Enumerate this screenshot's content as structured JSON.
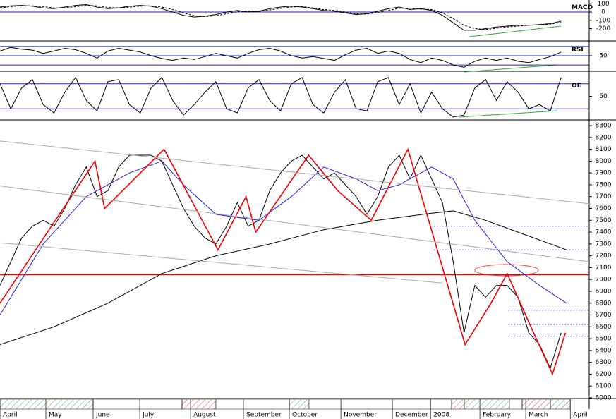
{
  "chart_data": [
    {
      "type": "line",
      "title": "MACD",
      "x": [
        0,
        1,
        2,
        3,
        4,
        5,
        6,
        7,
        8,
        9,
        10,
        11,
        12,
        13,
        14,
        15,
        16,
        17,
        18,
        19,
        20,
        21,
        22,
        23,
        24,
        25,
        26,
        27,
        28,
        29,
        30,
        31,
        32,
        33,
        34,
        35,
        36,
        37,
        38,
        39,
        40,
        41,
        42,
        43,
        44,
        45,
        46,
        47,
        48,
        49,
        50,
        51,
        52
      ],
      "series": [
        {
          "color": "#000000",
          "dashed": false,
          "values": [
            60,
            75,
            80,
            70,
            50,
            40,
            60,
            80,
            90,
            60,
            40,
            50,
            70,
            80,
            70,
            40,
            0,
            -40,
            -60,
            -50,
            -30,
            0,
            20,
            0,
            10,
            40,
            60,
            70,
            60,
            40,
            20,
            10,
            -10,
            -30,
            -20,
            10,
            40,
            60,
            30,
            40,
            20,
            -40,
            -130,
            -220,
            -220,
            -200,
            -180,
            -170,
            -160,
            -160,
            -150,
            -140,
            -110
          ]
        },
        {
          "color": "#000000",
          "dashed": true,
          "values": [
            50,
            65,
            75,
            75,
            65,
            50,
            50,
            65,
            80,
            75,
            55,
            50,
            60,
            70,
            75,
            60,
            30,
            -10,
            -45,
            -55,
            -45,
            -20,
            5,
            10,
            5,
            25,
            45,
            60,
            65,
            50,
            30,
            20,
            0,
            -20,
            -25,
            -5,
            20,
            45,
            45,
            35,
            30,
            -10,
            -80,
            -160,
            -200,
            -210,
            -195,
            -180,
            -170,
            -160,
            -155,
            -145,
            -125
          ]
        }
      ],
      "xlim": [
        0,
        54.6
      ],
      "ylim": [
        -340,
        145
      ],
      "yticks": [
        100,
        0,
        -100,
        -200
      ],
      "hlines": [
        0
      ]
    },
    {
      "type": "line",
      "title": "RSI",
      "x": [
        0,
        1,
        2,
        3,
        4,
        5,
        6,
        7,
        8,
        9,
        10,
        11,
        12,
        13,
        14,
        15,
        16,
        17,
        18,
        19,
        20,
        21,
        22,
        23,
        24,
        25,
        26,
        27,
        28,
        29,
        30,
        31,
        32,
        33,
        34,
        35,
        36,
        37,
        38,
        39,
        40,
        41,
        42,
        43,
        44,
        45,
        46,
        47,
        48,
        49,
        50,
        51,
        52
      ],
      "series": [
        {
          "color": "#000000",
          "dashed": false,
          "values": [
            60,
            68,
            64,
            62,
            55,
            60,
            66,
            63,
            55,
            45,
            60,
            66,
            62,
            58,
            50,
            44,
            40,
            45,
            42,
            48,
            55,
            50,
            45,
            55,
            63,
            66,
            60,
            50,
            45,
            48,
            44,
            40,
            52,
            62,
            66,
            55,
            60,
            55,
            42,
            35,
            45,
            40,
            30,
            25,
            38,
            45,
            40,
            45,
            38,
            35,
            42,
            48,
            58
          ]
        }
      ],
      "xlim": [
        0,
        54.6
      ],
      "ylim": [
        18,
        82
      ],
      "yticks": [
        50
      ],
      "hlines": [
        30,
        50,
        70
      ]
    },
    {
      "type": "line",
      "title": "OE",
      "x": [
        0,
        1,
        2,
        3,
        4,
        5,
        6,
        7,
        8,
        9,
        10,
        11,
        12,
        13,
        14,
        15,
        16,
        17,
        18,
        19,
        20,
        21,
        22,
        23,
        24,
        25,
        26,
        27,
        28,
        29,
        30,
        31,
        32,
        33,
        34,
        35,
        36,
        37,
        38,
        39,
        40,
        41,
        42,
        43,
        44,
        45,
        46,
        47,
        48,
        49,
        50,
        51,
        52
      ],
      "series": [
        {
          "color": "#000000",
          "dashed": false,
          "values": [
            80,
            20,
            70,
            90,
            30,
            10,
            60,
            95,
            40,
            15,
            85,
            90,
            30,
            10,
            70,
            95,
            40,
            5,
            30,
            60,
            85,
            20,
            10,
            70,
            90,
            40,
            15,
            80,
            95,
            30,
            10,
            60,
            90,
            20,
            15,
            85,
            95,
            30,
            80,
            10,
            60,
            20,
            0,
            5,
            70,
            90,
            40,
            85,
            60,
            20,
            30,
            15,
            95
          ]
        }
      ],
      "xlim": [
        0,
        54.6
      ],
      "ylim": [
        -5,
        110
      ],
      "yticks": [
        50
      ],
      "hlines": [
        20,
        80
      ]
    },
    {
      "type": "line",
      "x": [
        0,
        1,
        2,
        3,
        4,
        5,
        6,
        7,
        8,
        9,
        10,
        11,
        12,
        13,
        14,
        15,
        16,
        17,
        18,
        19,
        20,
        21,
        22,
        23,
        24,
        25,
        26,
        27,
        28,
        29,
        30,
        31,
        32,
        33,
        34,
        35,
        36,
        37,
        38,
        39,
        40,
        41,
        42,
        43,
        44,
        45,
        46,
        47,
        48,
        49,
        50,
        51,
        52
      ],
      "series": [
        {
          "color": "#000000",
          "dashed": false,
          "values": [
            6950,
            7150,
            7350,
            7450,
            7500,
            7450,
            7600,
            7800,
            7950,
            7700,
            7750,
            7950,
            8050,
            8050,
            8050,
            8000,
            7800,
            7600,
            7450,
            7350,
            7300,
            7450,
            7650,
            7450,
            7500,
            7750,
            7900,
            8000,
            8050,
            7950,
            7850,
            7900,
            7800,
            7700,
            7550,
            7700,
            7950,
            8050,
            7850,
            8050,
            7850,
            7650,
            7150,
            6550,
            6950,
            6850,
            6950,
            6950,
            6850,
            6550,
            6450,
            6250,
            6550
          ]
        },
        {
          "color": "#2222dd",
          "dashed": false,
          "x": [
            0,
            4,
            8,
            12,
            15,
            17,
            20,
            24,
            27,
            30,
            33,
            35,
            37,
            40,
            42,
            44,
            47,
            50,
            52.5
          ],
          "values": [
            6700,
            7300,
            7700,
            7900,
            8000,
            7800,
            7550,
            7500,
            7700,
            7950,
            7850,
            7750,
            7800,
            7950,
            7850,
            7500,
            7150,
            6950,
            6800
          ]
        },
        {
          "color": "#000000",
          "dashed": false,
          "x": [
            0,
            5,
            10,
            15,
            20,
            25,
            30,
            35,
            40,
            42,
            45,
            48,
            52.5
          ],
          "values": [
            6450,
            6600,
            6800,
            7050,
            7200,
            7300,
            7420,
            7500,
            7560,
            7580,
            7500,
            7400,
            7250
          ]
        },
        {
          "color": "#ee0000",
          "dashed": false,
          "x": [
            0,
            8.8,
            9.7,
            15.2,
            20.2,
            22.8,
            23.7,
            28.6,
            31.3,
            34.4,
            37.8,
            38.6,
            43.1,
            45.5,
            47,
            49.2,
            51.2,
            52.4
          ],
          "values": [
            6800,
            8000,
            7600,
            8100,
            7250,
            7700,
            7400,
            8050,
            7750,
            7500,
            8100,
            7850,
            6450,
            6800,
            7050,
            6600,
            6200,
            6550
          ]
        },
        {
          "color": "#aaaaaa",
          "dashed": false,
          "x": [
            0,
            54.6
          ],
          "values": [
            8170,
            7640
          ]
        },
        {
          "color": "#aaaaaa",
          "dashed": false,
          "x": [
            0,
            54.6
          ],
          "values": [
            7790,
            7150
          ]
        },
        {
          "color": "#aaaaaa",
          "dashed": false,
          "x": [
            0,
            41
          ],
          "values": [
            7310,
            6970
          ]
        }
      ],
      "levels": [
        {
          "x": [
            40.2,
            54.6
          ],
          "value": 7450
        },
        {
          "x": [
            40.2,
            54.6
          ],
          "value": 7250
        },
        {
          "x": [
            47.1,
            54.6
          ],
          "value": 6740
        },
        {
          "x": [
            47.1,
            54.6
          ],
          "value": 6620
        },
        {
          "x": [
            47.1,
            54.6
          ],
          "value": 6520
        }
      ],
      "hlines": [
        7040
      ],
      "xlim": [
        0,
        54.6
      ],
      "ylim": [
        5994,
        8342
      ],
      "yticks": [
        6000,
        6100,
        6200,
        6300,
        6400,
        6500,
        6600,
        6700,
        6800,
        6900,
        7000,
        7100,
        7200,
        7300,
        7400,
        7500,
        7600,
        7700,
        7800,
        7900,
        8000,
        8100,
        8200,
        8300
      ],
      "xticks": [
        {
          "value": 0,
          "label": "April"
        },
        {
          "value": 4.25,
          "label": "May"
        },
        {
          "value": 8.63,
          "label": "June"
        },
        {
          "value": 12.95,
          "label": "July"
        },
        {
          "value": 17.66,
          "label": "August"
        },
        {
          "value": 22.56,
          "label": "September"
        },
        {
          "value": 26.81,
          "label": "October"
        },
        {
          "value": 31.59,
          "label": "November"
        },
        {
          "value": 36.36,
          "label": "December"
        },
        {
          "value": 39.9,
          "label": "2008"
        },
        {
          "value": 44.47,
          "label": "February"
        },
        {
          "value": 48.72,
          "label": "March"
        },
        {
          "value": 52.85,
          "label": "April"
        }
      ]
    }
  ]
}
